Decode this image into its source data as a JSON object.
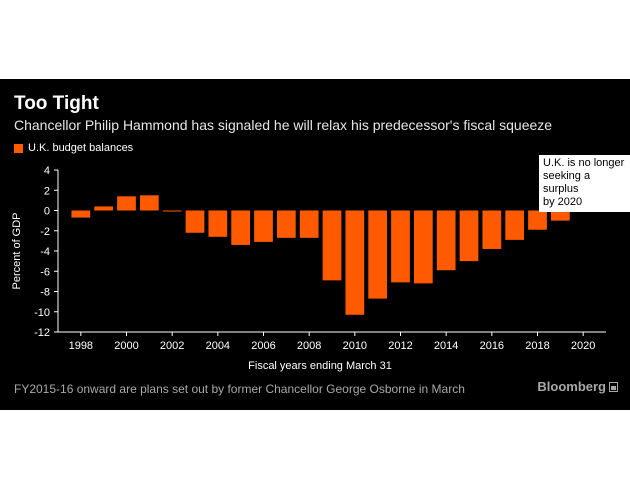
{
  "colors": {
    "bar": "#ff5a00",
    "background": "#000000",
    "text": "#ffffff",
    "muted": "#a8a8a8"
  },
  "header": {
    "title": "Too Tight",
    "subtitle": "Chancellor Philip Hammond has signaled he will relax his predecessor's fiscal squeeze"
  },
  "footer": {
    "note": "FY2015-16 onward are plans set out by former Chancellor George Osborne in March",
    "brand": "Bloomberg",
    "brand_icon": "bloomberg-logo-icon"
  },
  "chart_data": {
    "type": "bar",
    "title": "Too Tight",
    "subtitle": "Chancellor Philip Hammond has signaled he will relax his predecessor's fiscal squeeze",
    "xlabel": "Fiscal years ending March 31",
    "ylabel": "Percent of GDP",
    "ylim": [
      -12,
      4
    ],
    "yticks": [
      4,
      2,
      0,
      -2,
      -4,
      -6,
      -8,
      -10,
      -12
    ],
    "xlim": [
      1997,
      2021
    ],
    "xticks": [
      1998,
      2000,
      2002,
      2004,
      2006,
      2008,
      2010,
      2012,
      2014,
      2016,
      2018,
      2020
    ],
    "grid": false,
    "legend_position": "top-left",
    "series": [
      {
        "name": "U.K. budget balances",
        "x": [
          1998,
          1999,
          2000,
          2001,
          2002,
          2003,
          2004,
          2005,
          2006,
          2007,
          2008,
          2009,
          2010,
          2011,
          2012,
          2013,
          2014,
          2015,
          2016,
          2017,
          2018,
          2019,
          2020
        ],
        "values": [
          -0.7,
          0.4,
          1.4,
          1.5,
          -0.1,
          -2.2,
          -2.6,
          -3.4,
          -3.1,
          -2.7,
          -2.7,
          -6.9,
          -10.3,
          -8.7,
          -7.1,
          -7.2,
          -5.9,
          -5.0,
          -3.8,
          -2.9,
          -1.9,
          -1.0,
          0.5
        ]
      }
    ],
    "annotations": [
      {
        "text": "U.K. is no longer\nseeking a surplus\nby 2020",
        "x": 2020,
        "y": 0.5
      }
    ]
  }
}
